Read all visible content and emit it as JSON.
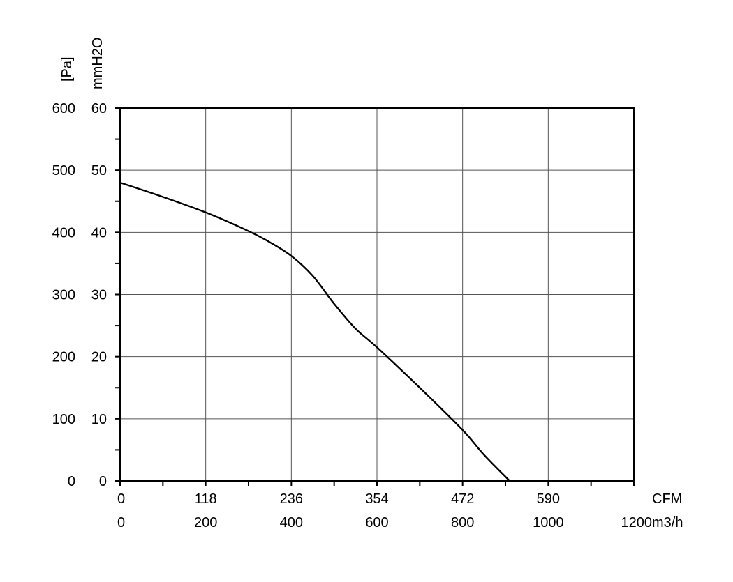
{
  "chart_data": {
    "type": "line",
    "title": "",
    "grid": true,
    "x_axes": [
      {
        "unit": "CFM",
        "ticks": [
          "0",
          "118",
          "236",
          "354",
          "472",
          "590"
        ]
      },
      {
        "unit": "m3/h",
        "range": [
          0,
          1200
        ],
        "ticks": [
          "0",
          "200",
          "400",
          "600",
          "800",
          "1000",
          "1200"
        ]
      }
    ],
    "y_axes": [
      {
        "unit": "[Pa]",
        "range": [
          0,
          600
        ],
        "ticks": [
          "0",
          "100",
          "200",
          "300",
          "400",
          "500",
          "600"
        ]
      },
      {
        "unit": "mmH2O",
        "ticks": [
          "0",
          "10",
          "20",
          "30",
          "40",
          "50",
          "60"
        ]
      }
    ],
    "series": [
      {
        "x_unit": "m3/h",
        "y_unit": "Pa",
        "x": [
          0,
          100,
          200,
          300,
          350,
          400,
          450,
          500,
          550,
          600,
          700,
          800,
          850,
          910
        ],
        "y": [
          480,
          457,
          432,
          402,
          384,
          362,
          330,
          285,
          245,
          215,
          150,
          82,
          42,
          0
        ]
      }
    ]
  }
}
